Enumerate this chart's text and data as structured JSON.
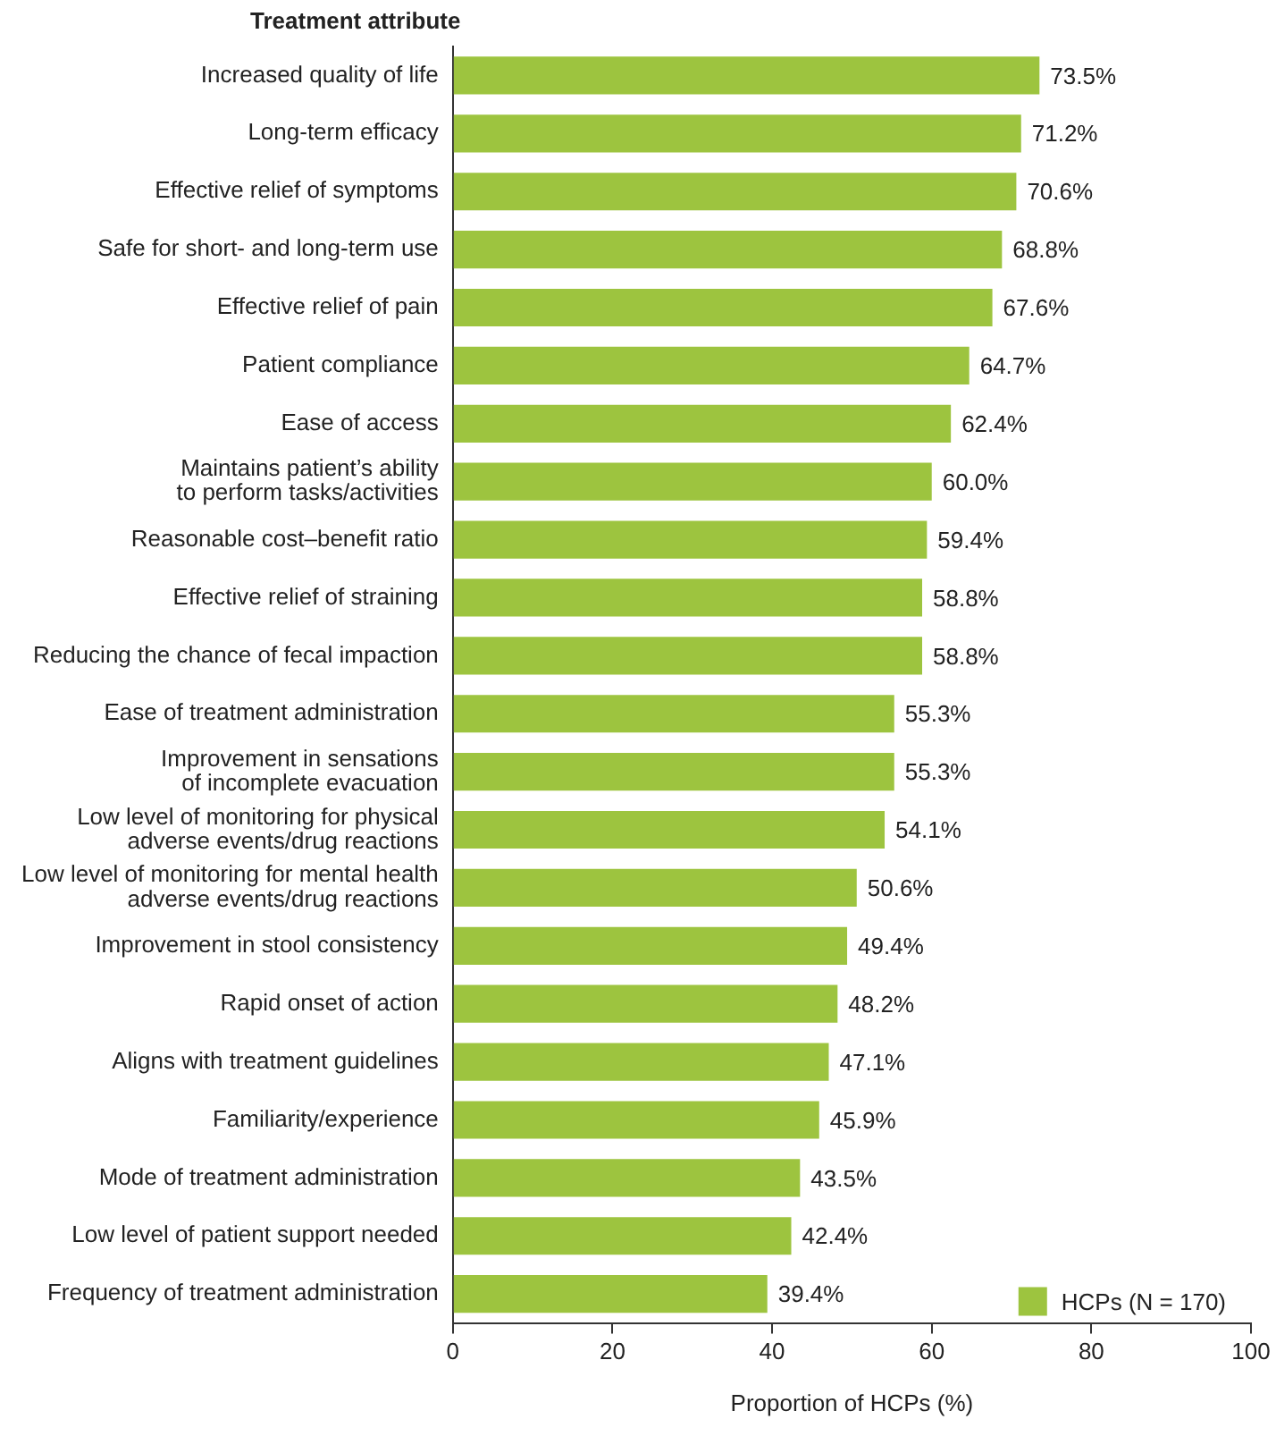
{
  "chart_data": {
    "type": "bar",
    "orientation": "horizontal",
    "ylabel": "Treatment attribute",
    "xlabel": "Proportion of HCPs (%)",
    "categories": [
      "Increased quality of life",
      "Long-term efficacy",
      "Effective relief of symptoms",
      "Safe for short- and long-term use",
      "Effective relief of pain",
      "Patient compliance",
      "Ease of access",
      "Maintains patient’s ability\nto perform tasks/activities",
      "Reasonable cost–benefit ratio",
      "Effective relief of straining",
      "Reducing the chance of fecal impaction",
      "Ease of treatment administration",
      "Improvement in sensations\nof incomplete evacuation",
      "Low level of monitoring for physical\nadverse events/drug reactions",
      "Low level of monitoring for mental health\nadverse events/drug reactions",
      "Improvement in stool consistency",
      "Rapid onset of action",
      "Aligns with treatment guidelines",
      "Familiarity/experience",
      "Mode of treatment administration",
      "Low level of patient support needed",
      "Frequency of treatment administration"
    ],
    "series": [
      {
        "name": "HCPs (N = 170)",
        "color": "#9dc43f",
        "values": [
          73.5,
          71.2,
          70.6,
          68.8,
          67.6,
          64.7,
          62.4,
          60.0,
          59.4,
          58.8,
          58.8,
          55.3,
          55.3,
          54.1,
          50.6,
          49.4,
          48.2,
          47.1,
          45.9,
          43.5,
          42.4,
          39.4
        ],
        "value_labels": [
          "73.5%",
          "71.2%",
          "70.6%",
          "68.8%",
          "67.6%",
          "64.7%",
          "62.4%",
          "60.0%",
          "59.4%",
          "58.8%",
          "58.8%",
          "55.3%",
          "55.3%",
          "54.1%",
          "50.6%",
          "49.4%",
          "48.2%",
          "47.1%",
          "45.9%",
          "43.5%",
          "42.4%",
          "39.4%"
        ]
      }
    ],
    "xlim": [
      0,
      100
    ],
    "xticks": [
      0,
      20,
      40,
      60,
      80,
      100
    ],
    "grid": false,
    "legend": "bottom right"
  }
}
